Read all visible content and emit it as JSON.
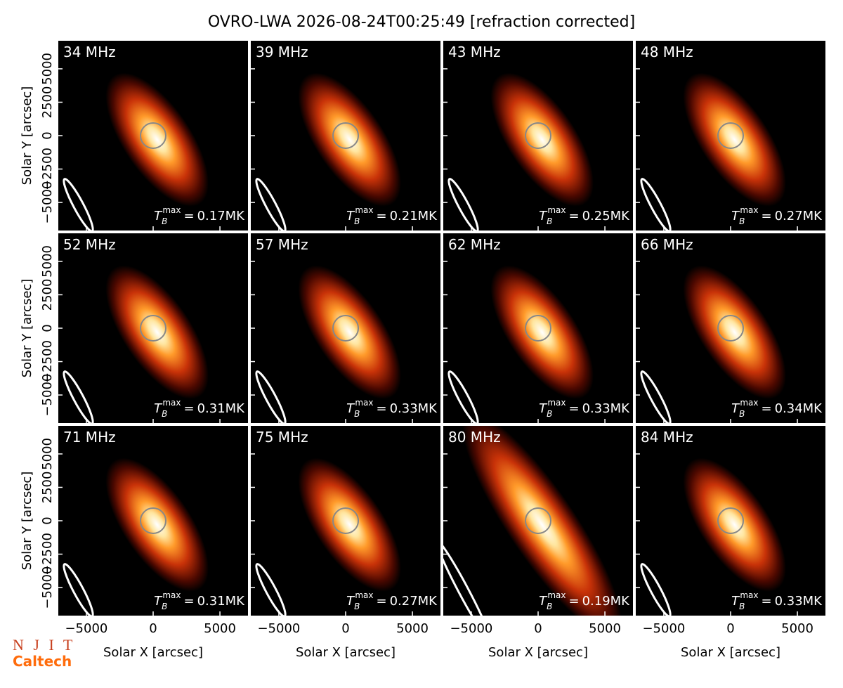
{
  "chart_data": {
    "type": "image_grid",
    "title": "OVRO-LWA 2026-08-24T00:25:49 [refraction corrected]",
    "x_label": "Solar X [arcsec]",
    "y_label": "Solar Y [arcsec]",
    "xlim": [
      -7100,
      7100
    ],
    "ylim": [
      -7100,
      7100
    ],
    "xticks": [
      {
        "value": -5000,
        "label": "−5000"
      },
      0,
      5000
    ],
    "yticks": [
      {
        "value": -5000,
        "label": "−5000"
      },
      {
        "value": -2500,
        "label": "−2500"
      },
      0,
      2500,
      5000
    ],
    "tb_symbol": "T",
    "tb_sub": "B",
    "tb_sup": "max",
    "tb_eq": "=",
    "panels": [
      {
        "freq": "34 MHz",
        "tb_max": "0.17MK"
      },
      {
        "freq": "39 MHz",
        "tb_max": "0.21MK"
      },
      {
        "freq": "43 MHz",
        "tb_max": "0.25MK"
      },
      {
        "freq": "48 MHz",
        "tb_max": "0.27MK"
      },
      {
        "freq": "52 MHz",
        "tb_max": "0.31MK"
      },
      {
        "freq": "57 MHz",
        "tb_max": "0.33MK"
      },
      {
        "freq": "62 MHz",
        "tb_max": "0.33MK"
      },
      {
        "freq": "66 MHz",
        "tb_max": "0.34MK"
      },
      {
        "freq": "71 MHz",
        "tb_max": "0.31MK"
      },
      {
        "freq": "75 MHz",
        "tb_max": "0.27MK"
      },
      {
        "freq": "80 MHz",
        "tb_max": "0.19MK"
      },
      {
        "freq": "84 MHz",
        "tb_max": "0.33MK"
      }
    ],
    "logos": [
      "N J I T",
      "Caltech"
    ]
  }
}
